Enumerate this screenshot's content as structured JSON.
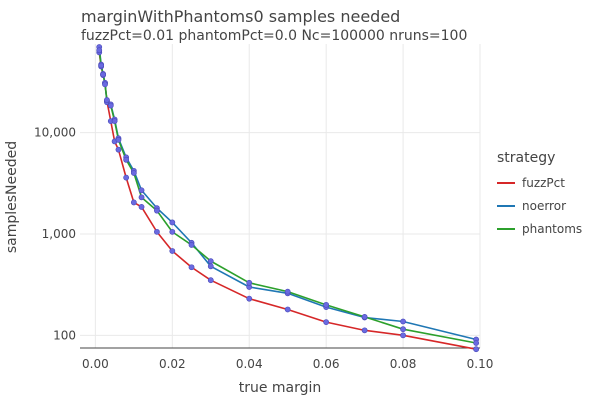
{
  "chart_data": {
    "type": "line",
    "title": "marginWithPhantoms0 samples needed",
    "subtitle": "fuzzPct=0.01 phantomPct=0.0 Nc=100000 nruns=100",
    "xlabel": "true margin",
    "ylabel": "samplesNeeded",
    "xlim": [
      -0.004,
      0.1
    ],
    "ylim": [
      75,
      75000
    ],
    "yscale": "log",
    "grid": true,
    "x_ticks": [
      0,
      0.02,
      0.04,
      0.06,
      0.08,
      0.1
    ],
    "x_tick_labels": [
      "0.00",
      "0.02",
      "0.04",
      "0.06",
      "0.08",
      "0.10"
    ],
    "y_ticks": [
      100,
      1000,
      10000
    ],
    "y_tick_labels": [
      "100",
      "1,000",
      "10,000"
    ],
    "legend": {
      "title": "strategy",
      "position": "right"
    },
    "series": [
      {
        "name": "fuzzPct",
        "color": "#d62728",
        "x": [
          0.001,
          0.0015,
          0.002,
          0.0025,
          0.003,
          0.004,
          0.005,
          0.006,
          0.008,
          0.01,
          0.012,
          0.016,
          0.02,
          0.025,
          0.03,
          0.04,
          0.05,
          0.06,
          0.07,
          0.08,
          0.099
        ],
        "y": [
          62000,
          45000,
          37000,
          31000,
          20500,
          13000,
          8200,
          6800,
          3600,
          2050,
          1850,
          1050,
          680,
          470,
          350,
          230,
          180,
          135,
          112,
          100,
          73
        ]
      },
      {
        "name": "noerror",
        "color": "#1f77b4",
        "x": [
          0.001,
          0.0015,
          0.002,
          0.0025,
          0.003,
          0.004,
          0.005,
          0.006,
          0.008,
          0.01,
          0.012,
          0.016,
          0.02,
          0.025,
          0.03,
          0.04,
          0.05,
          0.06,
          0.07,
          0.08,
          0.099
        ],
        "y": [
          70000,
          47000,
          38000,
          31000,
          20000,
          19000,
          13500,
          8800,
          5700,
          4200,
          2700,
          1800,
          1300,
          820,
          480,
          300,
          260,
          190,
          150,
          137,
          91
        ]
      },
      {
        "name": "phantoms",
        "color": "#2ca02c",
        "x": [
          0.001,
          0.0015,
          0.002,
          0.0025,
          0.003,
          0.004,
          0.005,
          0.006,
          0.008,
          0.01,
          0.012,
          0.016,
          0.02,
          0.025,
          0.03,
          0.04,
          0.05,
          0.06,
          0.07,
          0.08,
          0.099
        ],
        "y": [
          65000,
          46000,
          37500,
          30000,
          21000,
          18500,
          13000,
          8500,
          5400,
          4000,
          2300,
          1700,
          1050,
          780,
          540,
          330,
          270,
          200,
          152,
          115,
          84
        ]
      }
    ]
  }
}
